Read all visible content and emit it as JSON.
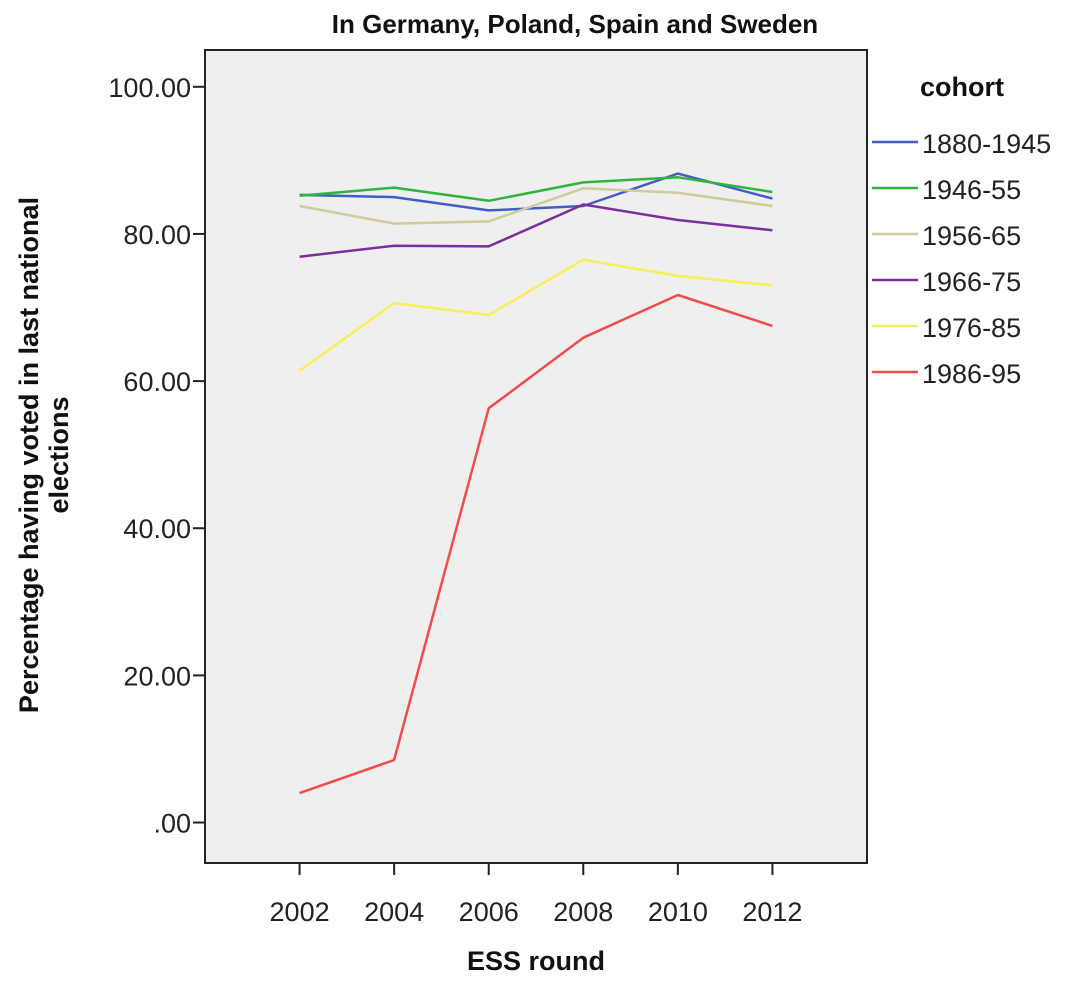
{
  "chart_data": {
    "type": "line",
    "title": "In Germany, Poland, Spain and Sweden",
    "xlabel": "ESS round",
    "ylabel_lines": [
      "Percentage having voted in last national",
      "elections"
    ],
    "x": [
      2002,
      2004,
      2006,
      2008,
      2010,
      2012
    ],
    "x_tick_labels": [
      "2002",
      "2004",
      "2006",
      "2008",
      "2010",
      "2012"
    ],
    "xlim": [
      2000,
      2014
    ],
    "ylim": [
      -5.5,
      105
    ],
    "y_ticks": [
      0,
      20,
      40,
      60,
      80,
      100
    ],
    "y_tick_labels": [
      ".00",
      "20.00",
      "40.00",
      "60.00",
      "80.00",
      "100.00"
    ],
    "grid": false,
    "plot_background": "#efefef",
    "legend": {
      "title": "cohort",
      "placement": "right"
    },
    "series": [
      {
        "name": "1880-1945",
        "color": "#3f5fc7",
        "values": [
          85.3,
          85.0,
          83.2,
          83.8,
          88.2,
          84.8
        ]
      },
      {
        "name": "1946-55",
        "color": "#2db53d",
        "values": [
          85.2,
          86.3,
          84.5,
          87.0,
          87.7,
          85.7
        ]
      },
      {
        "name": "1956-65",
        "color": "#cfcb9a",
        "values": [
          83.8,
          81.4,
          81.7,
          86.2,
          85.6,
          83.8
        ]
      },
      {
        "name": "1966-75",
        "color": "#7d2e9c",
        "values": [
          76.9,
          78.4,
          78.3,
          84.0,
          81.9,
          80.5
        ]
      },
      {
        "name": "1976-85",
        "color": "#f6ef5a",
        "values": [
          61.4,
          70.6,
          69.0,
          76.5,
          74.3,
          73.0
        ]
      },
      {
        "name": "1986-95",
        "color": "#f04c4c",
        "values": [
          4.0,
          8.5,
          56.3,
          65.9,
          71.7,
          67.5
        ]
      }
    ]
  }
}
